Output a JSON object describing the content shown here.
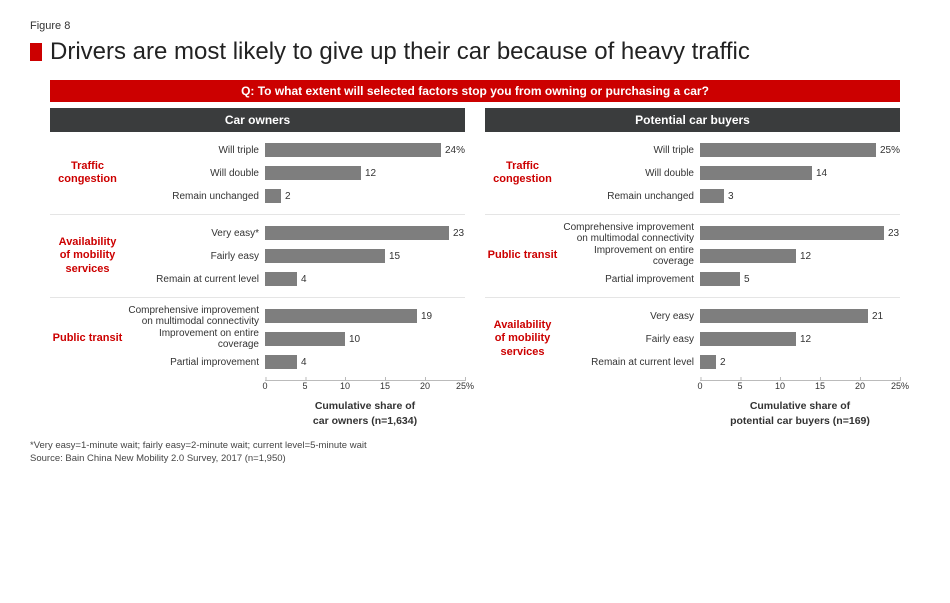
{
  "figure_label": "Figure 8",
  "main_title": "Drivers are most likely to give up their car because of heavy traffic",
  "question_text": "Q: To what extent will selected factors stop you from owning or purchasing a car?",
  "accent_color": "#cc0000",
  "header_bg": "#3a3c3d",
  "bar_color": "#7e7e7e",
  "x_max": 25,
  "x_ticks": [
    0,
    5,
    10,
    15,
    20,
    25
  ],
  "x_tick_labels": [
    "0",
    "5",
    "10",
    "15",
    "20",
    "25%"
  ],
  "panels": [
    {
      "header": "Car owners",
      "axis_caption_l1": "Cumulative share of",
      "axis_caption_l2": "car owners (n=1,634)",
      "groups": [
        {
          "name": "Traffic congestion",
          "bars": [
            {
              "label": "Will triple",
              "value": 24,
              "disp": "24%"
            },
            {
              "label": "Will double",
              "value": 12,
              "disp": "12"
            },
            {
              "label": "Remain unchanged",
              "value": 2,
              "disp": "2"
            }
          ]
        },
        {
          "name": "Availability of mobility services",
          "bars": [
            {
              "label": "Very easy*",
              "value": 23,
              "disp": "23"
            },
            {
              "label": "Fairly easy",
              "value": 15,
              "disp": "15"
            },
            {
              "label": "Remain at current level",
              "value": 4,
              "disp": "4"
            }
          ]
        },
        {
          "name": "Public transit",
          "bars": [
            {
              "label": "Comprehensive improvement on multimodal connectivity",
              "value": 19,
              "disp": "19"
            },
            {
              "label": "Improvement on entire coverage",
              "value": 10,
              "disp": "10"
            },
            {
              "label": "Partial improvement",
              "value": 4,
              "disp": "4"
            }
          ]
        }
      ]
    },
    {
      "header": "Potential car buyers",
      "axis_caption_l1": "Cumulative share of",
      "axis_caption_l2": "potential car buyers (n=169)",
      "groups": [
        {
          "name": "Traffic congestion",
          "bars": [
            {
              "label": "Will triple",
              "value": 25,
              "disp": "25%"
            },
            {
              "label": "Will double",
              "value": 14,
              "disp": "14"
            },
            {
              "label": "Remain unchanged",
              "value": 3,
              "disp": "3"
            }
          ]
        },
        {
          "name": "Public transit",
          "bars": [
            {
              "label": "Comprehensive improvement on multimodal connectivity",
              "value": 23,
              "disp": "23"
            },
            {
              "label": "Improvement on entire coverage",
              "value": 12,
              "disp": "12"
            },
            {
              "label": "Partial improvement",
              "value": 5,
              "disp": "5"
            }
          ]
        },
        {
          "name": "Availability of mobility services",
          "bars": [
            {
              "label": "Very easy",
              "value": 21,
              "disp": "21"
            },
            {
              "label": "Fairly easy",
              "value": 12,
              "disp": "12"
            },
            {
              "label": "Remain at current level",
              "value": 2,
              "disp": "2"
            }
          ]
        }
      ]
    }
  ],
  "footnote_l1": "*Very easy=1-minute wait; fairly easy=2-minute wait; current level=5-minute wait",
  "footnote_l2": "Source: Bain China New Mobility 2.0 Survey, 2017 (n=1,950)"
}
